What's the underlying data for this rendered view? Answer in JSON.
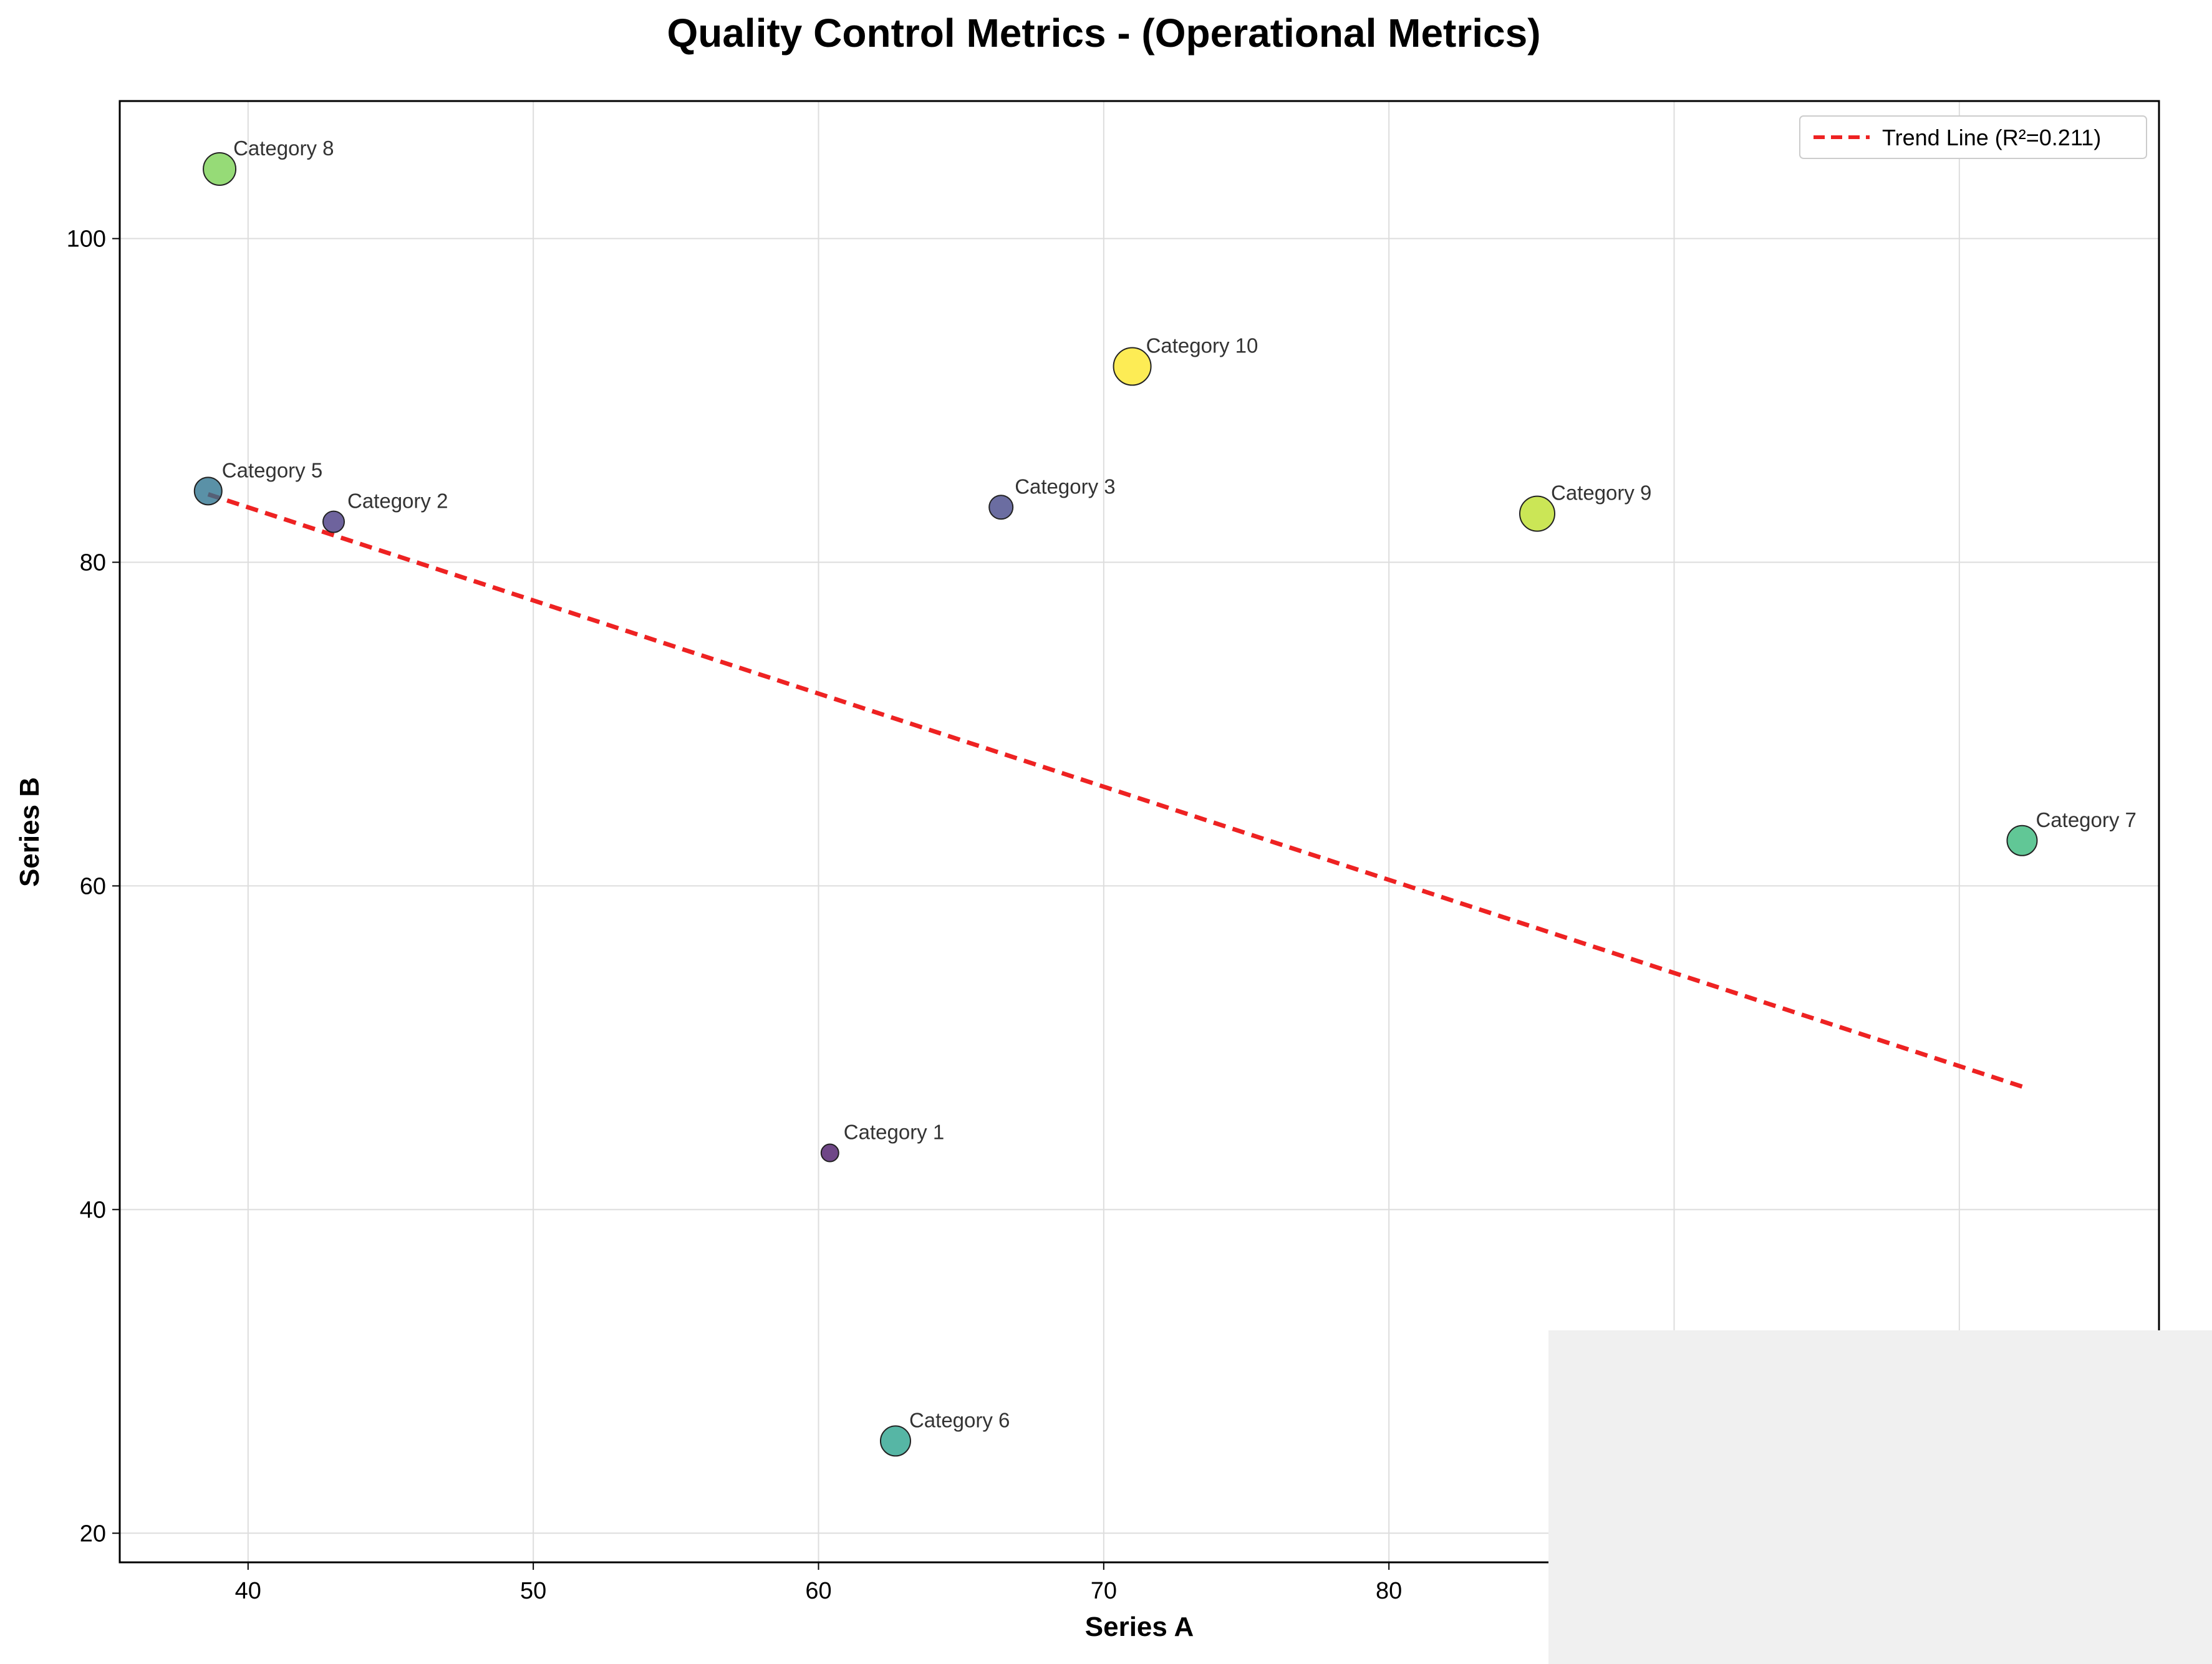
{
  "chart_data": {
    "type": "scatter",
    "title": "Quality Control Metrics - (Operational Metrics)",
    "xlabel": "Series A",
    "ylabel": "Series B",
    "xlim": [
      35.5,
      107.0
    ],
    "ylim": [
      18.2,
      108.5
    ],
    "xticks": [
      40,
      50,
      60,
      70,
      80
    ],
    "yticks": [
      20,
      40,
      60,
      80,
      100
    ],
    "grid": true,
    "legend_position": "top-right",
    "points": [
      {
        "label": "Category 1",
        "x": 60.4,
        "y": 43.5,
        "size": 14,
        "color": "#471365"
      },
      {
        "label": "Category 2",
        "x": 43.0,
        "y": 82.5,
        "size": 17,
        "color": "#453781"
      },
      {
        "label": "Category 3",
        "x": 66.4,
        "y": 83.4,
        "size": 19,
        "color": "#414487"
      },
      {
        "label": "Category 5",
        "x": 38.6,
        "y": 84.4,
        "size": 22,
        "color": "#2c728e"
      },
      {
        "label": "Category 6",
        "x": 62.7,
        "y": 25.7,
        "size": 24,
        "color": "#26a28c"
      },
      {
        "label": "Category 7",
        "x": 102.2,
        "y": 62.8,
        "size": 24,
        "color": "#35b779"
      },
      {
        "label": "Category 8",
        "x": 39.0,
        "y": 104.3,
        "size": 26,
        "color": "#78d151"
      },
      {
        "label": "Category 9",
        "x": 85.2,
        "y": 83.0,
        "size": 28,
        "color": "#bddf26"
      },
      {
        "label": "Category 10",
        "x": 71.0,
        "y": 92.1,
        "size": 30,
        "color": "#fde725"
      }
    ],
    "trend_line": {
      "label": "Trend Line (R²=0.211)",
      "color": "#ee2222",
      "x_start": 38.6,
      "y_start": 84.2,
      "x_end": 102.2,
      "y_end": 47.6
    }
  }
}
